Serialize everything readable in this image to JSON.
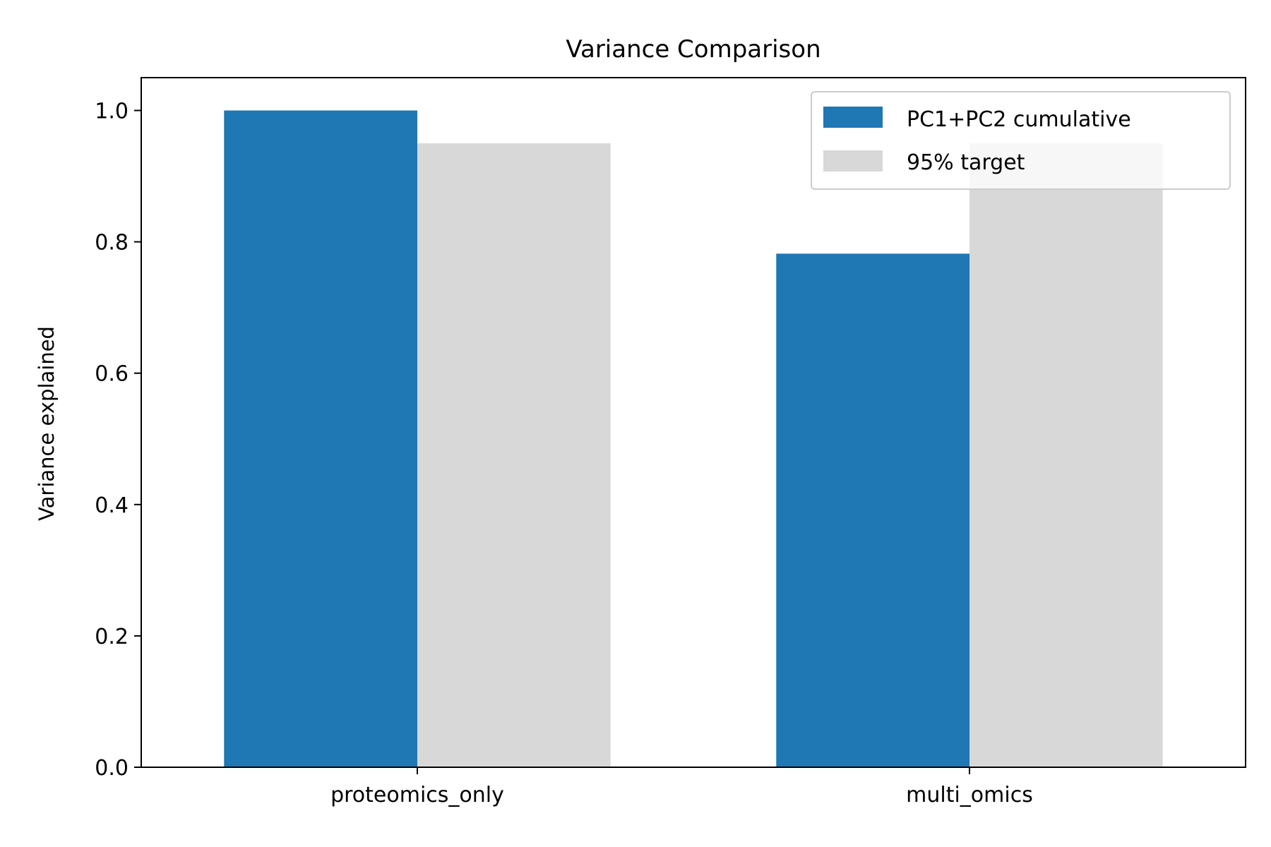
{
  "chart_data": {
    "type": "bar",
    "title": "Variance Comparison",
    "xlabel": "",
    "ylabel": "Variance explained",
    "categories": [
      "proteomics_only",
      "multi_omics"
    ],
    "series": [
      {
        "name": "PC1+PC2 cumulative",
        "values": [
          1.0,
          0.782
        ],
        "color": "#1f77b4"
      },
      {
        "name": "95% target",
        "values": [
          0.95,
          0.95
        ],
        "color": "#d8d8d8"
      }
    ],
    "ylim": [
      0,
      1.05
    ],
    "yticks": [
      "0.0",
      "0.2",
      "0.4",
      "0.6",
      "0.8",
      "1.0"
    ],
    "ytick_values": [
      0,
      0.2,
      0.4,
      0.6,
      0.8,
      1.0
    ],
    "grid": false,
    "legend_position": "top-right"
  }
}
